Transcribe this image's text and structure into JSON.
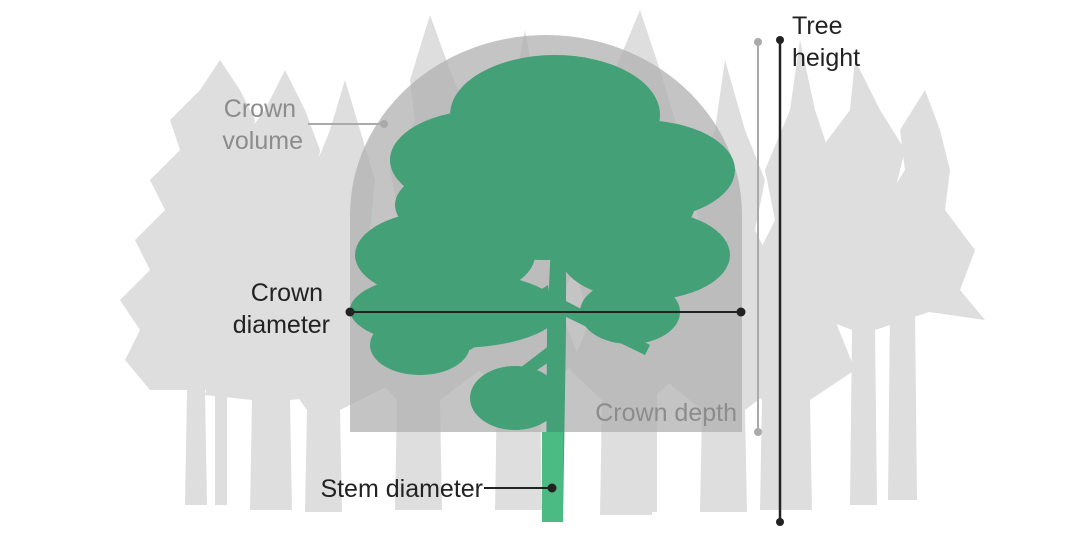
{
  "labels": {
    "tree_height": [
      "Tree",
      "height"
    ],
    "crown_volume": [
      "Crown",
      "volume"
    ],
    "crown_diameter": [
      "Crown",
      "diameter"
    ],
    "crown_depth": "Crown depth",
    "stem_diameter": "Stem diameter"
  },
  "colors": {
    "background_trees": "#dedede",
    "crown_volume_shape": "#b0b0b0",
    "focus_tree": "#43a077",
    "stem_marker": "#4cbb83",
    "measure_line_dark": "#222222",
    "measure_line_muted": "#aaaaaa"
  }
}
